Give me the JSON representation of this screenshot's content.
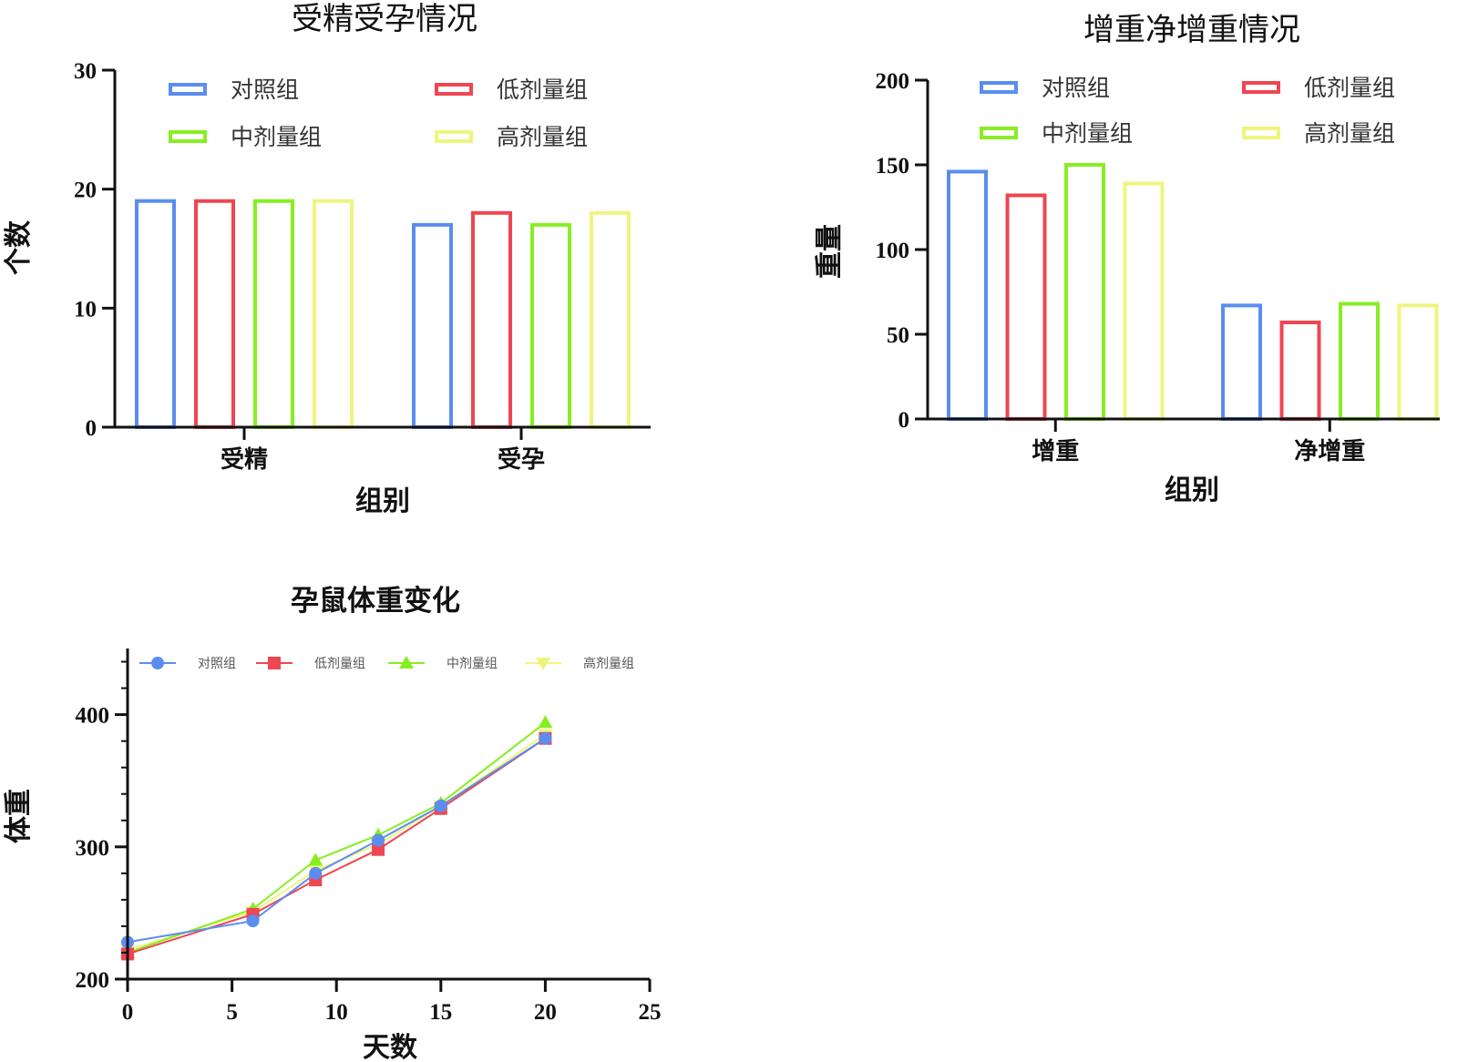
{
  "colors": {
    "control": "#5B8DEF",
    "low": "#EE4652",
    "mid": "#88EE22",
    "high": "#EEF57E",
    "axis": "#111111"
  },
  "chart_data": [
    {
      "type": "bar",
      "title": "受精受孕情况",
      "xlabel": "组别",
      "ylabel": "个数",
      "categories": [
        "受精",
        "受孕"
      ],
      "ylim": [
        0,
        30
      ],
      "yticks": [
        "0",
        "10",
        "20",
        "30"
      ],
      "series": [
        {
          "name": "对照组",
          "values": [
            19,
            17
          ]
        },
        {
          "name": "低剂量组",
          "values": [
            19,
            18
          ]
        },
        {
          "name": "中剂量组",
          "values": [
            19,
            17
          ]
        },
        {
          "name": "高剂量组",
          "values": [
            19,
            18
          ]
        }
      ],
      "legend": "top",
      "bar_style": "outline"
    },
    {
      "type": "bar",
      "title": "增重净增重情况",
      "xlabel": "组别",
      "ylabel": "重量",
      "categories": [
        "增重",
        "净增重"
      ],
      "ylim": [
        0,
        200
      ],
      "yticks": [
        "0",
        "50",
        "100",
        "150",
        "200"
      ],
      "series": [
        {
          "name": "对照组",
          "values": [
            146,
            67
          ]
        },
        {
          "name": "低剂量组",
          "values": [
            132,
            57
          ]
        },
        {
          "name": "中剂量组",
          "values": [
            150,
            68
          ]
        },
        {
          "name": "高剂量组",
          "values": [
            139,
            67
          ]
        }
      ],
      "legend": "top",
      "bar_style": "outline"
    },
    {
      "type": "line",
      "title": "孕鼠体重变化",
      "xlabel": "天数",
      "ylabel": "体重",
      "xlim": [
        0,
        25
      ],
      "ylim": [
        200,
        450
      ],
      "xticks": [
        "0",
        "5",
        "10",
        "15",
        "20",
        "25"
      ],
      "yticks": [
        "200",
        "300",
        "400"
      ],
      "x": [
        0,
        6,
        9,
        12,
        15,
        20
      ],
      "series": [
        {
          "name": "对照组",
          "marker": "circle",
          "values": [
            228,
            244,
            280,
            305,
            331,
            382
          ]
        },
        {
          "name": "低剂量组",
          "marker": "square",
          "values": [
            219,
            249,
            275,
            298,
            329,
            382
          ]
        },
        {
          "name": "中剂量组",
          "marker": "triangle-up",
          "values": [
            220,
            253,
            290,
            309,
            333,
            394
          ]
        },
        {
          "name": "高剂量组",
          "marker": "triangle-down",
          "values": [
            222,
            251,
            282,
            302,
            331,
            385
          ]
        }
      ],
      "legend": "top"
    }
  ]
}
